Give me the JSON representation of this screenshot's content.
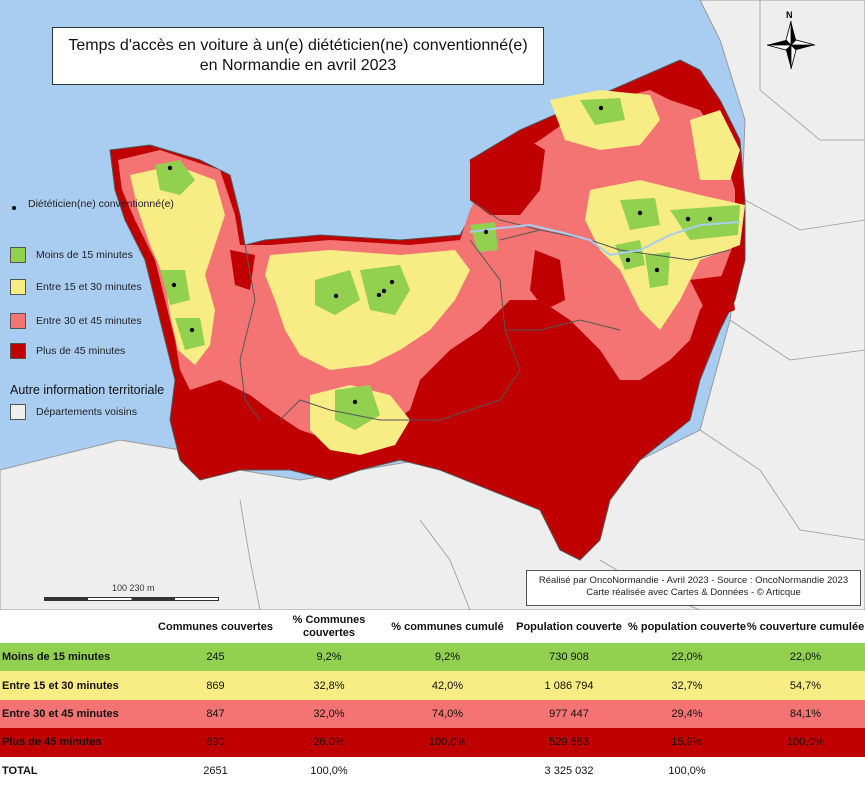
{
  "title_line1": "Temps d'accès en voiture à un(e) diététicien(ne) conventionné(e)",
  "title_line2": "en Normandie en avril 2023",
  "legend": {
    "dot_label": "Diététicien(ne) conventionné(e)",
    "items": [
      {
        "label": "Moins de 15 minutes",
        "color": "#92d050"
      },
      {
        "label": "Entre 15 et 30 minutes",
        "color": "#f8ec84"
      },
      {
        "label": "Entre 30 et 45 minutes",
        "color": "#f47474"
      },
      {
        "label": "Plus de 45 minutes",
        "color": "#c00000"
      }
    ],
    "section_title": "Autre information territoriale",
    "neighbors_label": "Départements voisins",
    "neighbors_color": "#eeeeee"
  },
  "compass_label": "N",
  "scale_label": "100 230 m",
  "credit_line1": "Réalisé par OncoNormandie - Avril 2023 - Source : OncoNormandie 2023",
  "credit_line2": "Carte réalisée avec Cartes & Données - © Articque",
  "table": {
    "headers": [
      "",
      "Communes couvertes",
      "% Communes couvertes",
      "% communes cumulé",
      "Population couverte",
      "% population couverte",
      "% couverture cumulée"
    ],
    "rows": [
      [
        "Moins de 15 minutes",
        "245",
        "9,2%",
        "9,2%",
        "730 908",
        "22,0%",
        "22,0%"
      ],
      [
        "Entre 15 et 30 minutes",
        "869",
        "32,8%",
        "42,0%",
        "1 086 794",
        "32,7%",
        "54,7%"
      ],
      [
        "Entre 30 et 45 minutes",
        "847",
        "32,0%",
        "74,0%",
        "977 447",
        "29,4%",
        "84,1%"
      ],
      [
        "Plus de 45 minutes",
        "690",
        "26,0%",
        "100,0%",
        "529 883",
        "15,9%",
        "100,0%"
      ]
    ],
    "total": [
      "TOTAL",
      "2651",
      "100,0%",
      "",
      "3 325 032",
      "100,0%",
      ""
    ]
  }
}
